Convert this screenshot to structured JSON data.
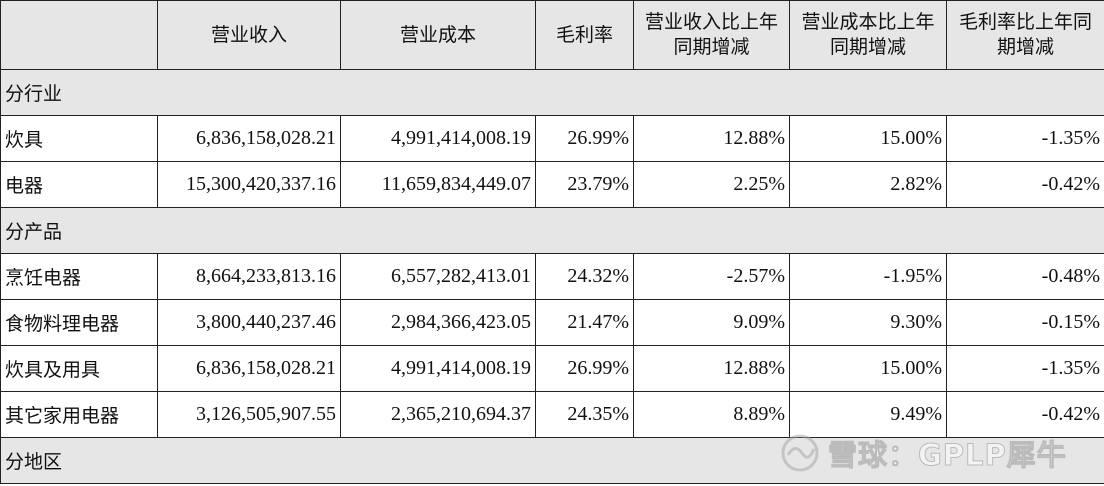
{
  "headers": [
    "",
    "营业收入",
    "营业成本",
    "毛利率",
    "营业收入比上年同期增减",
    "营业成本比上年同期增减",
    "毛利率比上年同期增减"
  ],
  "header_lines": {
    "col4": [
      "营业收入比上年",
      "同期增减"
    ],
    "col5": [
      "营业成本比上年",
      "同期增减"
    ],
    "col6": [
      "毛利率比上年同",
      "期增减"
    ]
  },
  "sections": [
    {
      "title": "分行业",
      "rows": [
        {
          "label": "炊具",
          "revenue": "6,836,158,028.21",
          "cost": "4,991,414,008.19",
          "gross_margin": "26.99%",
          "rev_change": "12.88%",
          "cost_change": "15.00%",
          "margin_change": "-1.35%"
        },
        {
          "label": "电器",
          "revenue": "15,300,420,337.16",
          "cost": "11,659,834,449.07",
          "gross_margin": "23.79%",
          "rev_change": "2.25%",
          "cost_change": "2.82%",
          "margin_change": "-0.42%"
        }
      ]
    },
    {
      "title": "分产品",
      "rows": [
        {
          "label": "烹饪电器",
          "revenue": "8,664,233,813.16",
          "cost": "6,557,282,413.01",
          "gross_margin": "24.32%",
          "rev_change": "-2.57%",
          "cost_change": "-1.95%",
          "margin_change": "-0.48%"
        },
        {
          "label": "食物料理电器",
          "revenue": "3,800,440,237.46",
          "cost": "2,984,366,423.05",
          "gross_margin": "21.47%",
          "rev_change": "9.09%",
          "cost_change": "9.30%",
          "margin_change": "-0.15%"
        },
        {
          "label": "炊具及用具",
          "revenue": "6,836,158,028.21",
          "cost": "4,991,414,008.19",
          "gross_margin": "26.99%",
          "rev_change": "12.88%",
          "cost_change": "15.00%",
          "margin_change": "-1.35%"
        },
        {
          "label": "其它家用电器",
          "revenue": "3,126,505,907.55",
          "cost": "2,365,210,694.37",
          "gross_margin": "24.35%",
          "rev_change": "8.89%",
          "cost_change": "9.49%",
          "margin_change": "-0.42%"
        }
      ]
    },
    {
      "title": "分地区",
      "rows": []
    }
  ],
  "watermark": {
    "text": "雪球：GPLP犀牛",
    "icon": "snowball-logo-icon"
  }
}
